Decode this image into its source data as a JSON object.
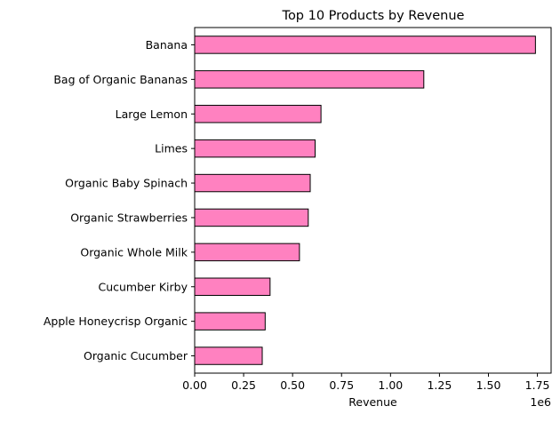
{
  "chart_data": {
    "type": "bar",
    "orientation": "horizontal",
    "title": "Top 10 Products by Revenue",
    "xlabel": "Revenue",
    "ylabel": "",
    "x_offset_label": "1e6",
    "xlim": [
      0,
      1.82
    ],
    "x_ticks": [
      "0.00",
      "0.25",
      "0.50",
      "0.75",
      "1.00",
      "1.25",
      "1.50",
      "1.75"
    ],
    "x_tick_values": [
      0,
      0.25,
      0.5,
      0.75,
      1.0,
      1.25,
      1.5,
      1.75
    ],
    "categories": [
      "Banana",
      "Bag of Organic Bananas",
      "Large Lemon",
      "Limes",
      "Organic Baby Spinach",
      "Organic Strawberries",
      "Organic Whole Milk",
      "Cucumber Kirby",
      "Apple Honeycrisp Organic",
      "Organic Cucumber"
    ],
    "values": [
      1.74,
      1.17,
      0.645,
      0.615,
      0.59,
      0.58,
      0.535,
      0.385,
      0.36,
      0.345
    ],
    "value_scale": 1000000,
    "grid": false,
    "legend": "none",
    "bar_color": "#ff81c0",
    "bar_edge_color": "#000000"
  }
}
